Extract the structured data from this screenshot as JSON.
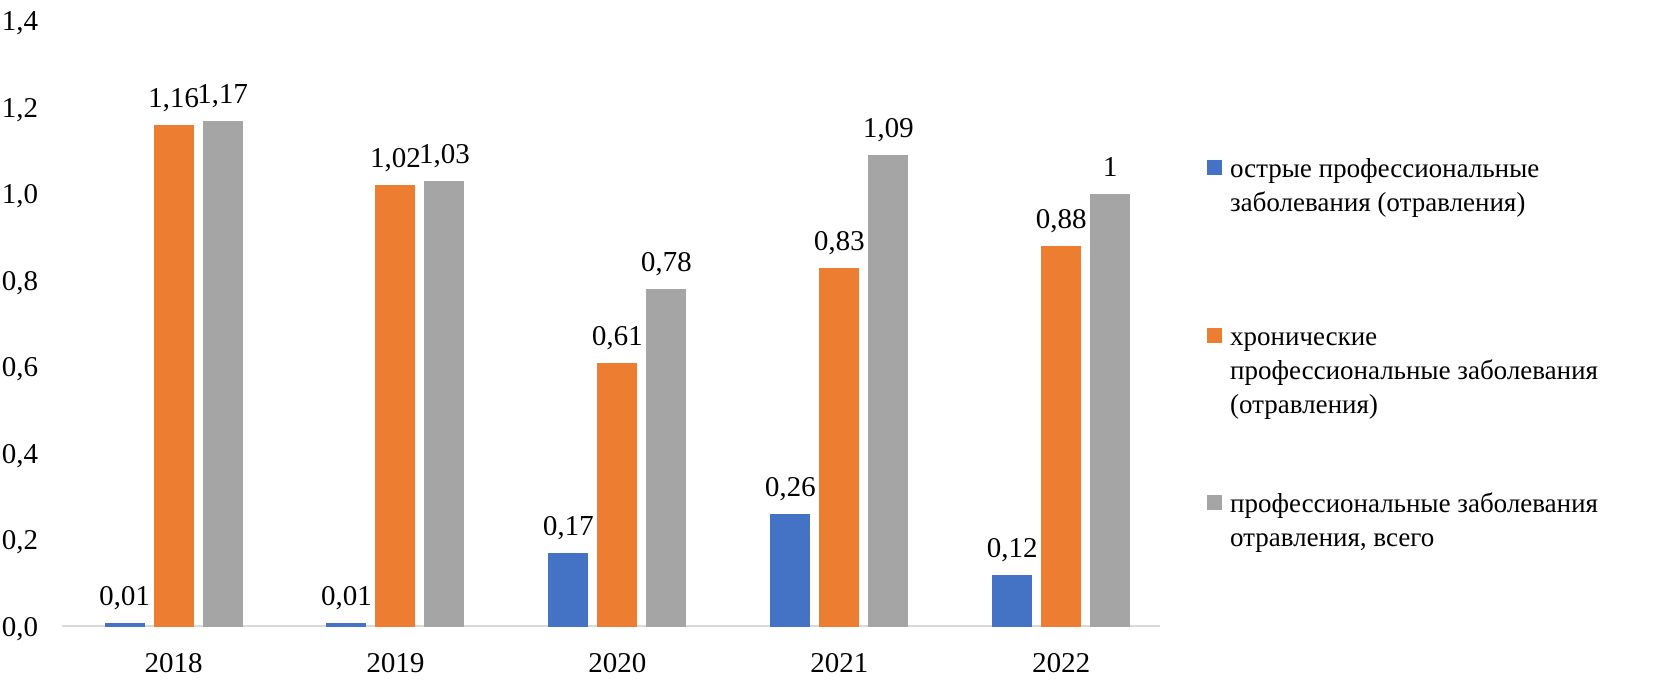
{
  "chart_data": {
    "type": "bar",
    "categories": [
      "2018",
      "2019",
      "2020",
      "2021",
      "2022"
    ],
    "series": [
      {
        "name": "острые профессиональные заболевания (отравления)",
        "color": "#4472C4",
        "values": [
          0.01,
          0.01,
          0.17,
          0.26,
          0.12
        ],
        "labels": [
          "0,01",
          "0,01",
          "0,17",
          "0,26",
          "0,12"
        ]
      },
      {
        "name": "хронические профессиональные заболевания (отравления)",
        "color": "#ED7D31",
        "values": [
          1.16,
          1.02,
          0.61,
          0.83,
          0.88
        ],
        "labels": [
          "1,16",
          "1,02",
          "0,61",
          "0,83",
          "0,88"
        ]
      },
      {
        "name": "профессиональные заболевания отравления, всего",
        "color": "#A5A5A5",
        "values": [
          1.17,
          1.03,
          0.78,
          1.09,
          1
        ],
        "labels": [
          "1,17",
          "1,03",
          "0,78",
          "1,09",
          "1"
        ]
      }
    ],
    "ylim": [
      0,
      1.4
    ],
    "yticks": [
      {
        "value": 0.0,
        "label": "0,0"
      },
      {
        "value": 0.2,
        "label": "0,2"
      },
      {
        "value": 0.4,
        "label": "0,4"
      },
      {
        "value": 0.6,
        "label": "0,6"
      },
      {
        "value": 0.8,
        "label": "0,8"
      },
      {
        "value": 1.0,
        "label": "1,0"
      },
      {
        "value": 1.2,
        "label": "1,2"
      },
      {
        "value": 1.4,
        "label": "1,4"
      }
    ],
    "grid": false,
    "legend_position": "right",
    "axis_color": "#D9D9D9",
    "text_color": "#000000"
  },
  "legend": {
    "items": [
      {
        "text": "острые профессиональные\nзаболевания (отравления)"
      },
      {
        "text": "хронические\nпрофессиональные заболевания\n(отравления)"
      },
      {
        "text": "профессиональные заболевания\nотравления, всего"
      }
    ]
  }
}
